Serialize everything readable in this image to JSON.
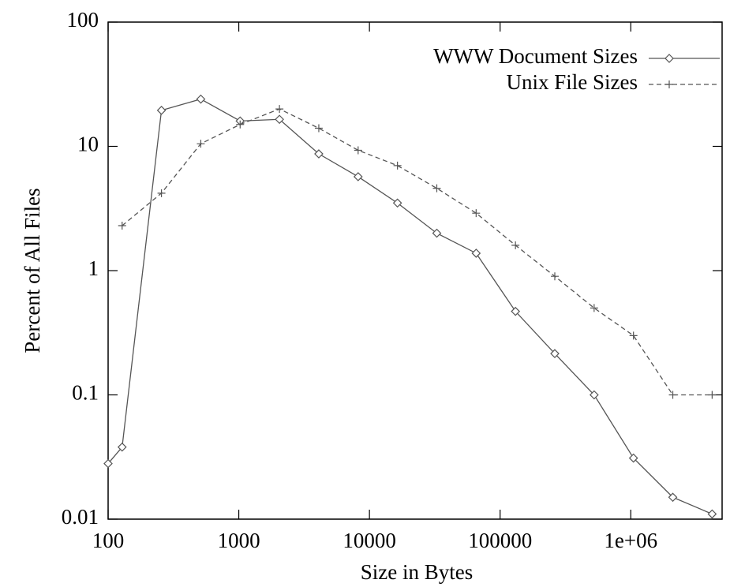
{
  "chart_data": {
    "type": "line",
    "x_label": "Size in Bytes",
    "y_label": "Percent of All Files",
    "xscale": "log",
    "yscale": "log",
    "xlim": [
      100,
      5000000
    ],
    "ylim": [
      0.01,
      100
    ],
    "xticks": [
      100,
      1000,
      10000,
      100000,
      {
        "value": 1000000,
        "label": "1e+06"
      }
    ],
    "yticks": [
      0.01,
      0.1,
      1,
      10,
      100
    ],
    "legend": "top-right",
    "series": [
      {
        "name": "WWW Document Sizes",
        "color": "#555555",
        "marker": "diamond",
        "line_style": "solid",
        "x": [
          100,
          128,
          256,
          512,
          1024,
          2048,
          4096,
          8192,
          16384,
          32768,
          65536,
          131072,
          262144,
          524288,
          1048576,
          2097152,
          4194304
        ],
        "values": [
          0.028,
          0.038,
          19.5,
          24,
          16,
          16.5,
          8.7,
          5.7,
          3.5,
          2.0,
          1.38,
          0.47,
          0.215,
          0.1,
          0.031,
          0.015,
          0.011
        ]
      },
      {
        "name": "Unix File Sizes",
        "color": "#555555",
        "marker": "plus",
        "line_style": "dashed",
        "x": [
          128,
          256,
          512,
          1024,
          2048,
          4096,
          8192,
          16384,
          32768,
          65536,
          131072,
          262144,
          524288,
          1048576,
          2097152,
          4194304
        ],
        "values": [
          2.3,
          4.2,
          10.5,
          15,
          20,
          14,
          9.3,
          7,
          4.6,
          2.9,
          1.6,
          0.9,
          0.5,
          0.3,
          0.1,
          0.1
        ]
      }
    ]
  }
}
